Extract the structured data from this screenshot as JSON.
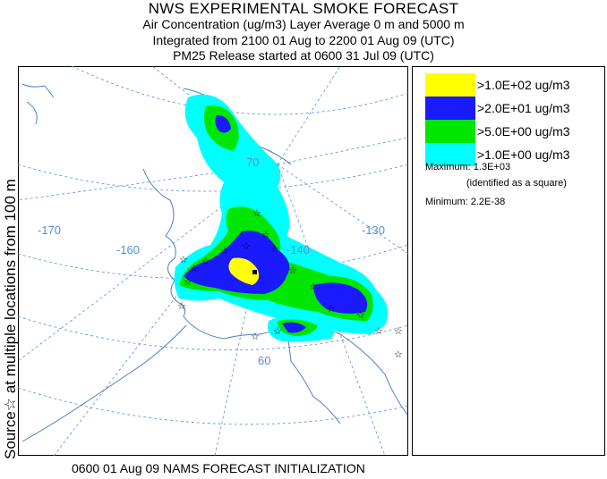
{
  "header": {
    "title": "NWS EXPERIMENTAL SMOKE FORECAST",
    "line1": "Air Concentration (ug/m3) Layer Average    0 m and  5000 m",
    "line2": "Integrated from 2100 01 Aug to 2200 01 Aug 09 (UTC)",
    "line3": "PM25 Release started at 0600 31 Jul 09 (UTC)"
  },
  "side_label": "Source☆ at multiple locations   from   100 m",
  "map": {
    "lon_labels": [
      "-170",
      "-160",
      "-140",
      "-130"
    ],
    "lat_labels": [
      "70",
      "60"
    ],
    "colors": {
      "level1": "#ffff00",
      "level2": "#1a1aff",
      "level3": "#00e600",
      "level4": "#00ffff"
    }
  },
  "legend": {
    "items": [
      {
        "label": ">1.0E+02 ug/m3",
        "color": "#ffff00"
      },
      {
        "label": ">2.0E+01 ug/m3",
        "color": "#1a1aff"
      },
      {
        "label": ">5.0E+00 ug/m3",
        "color": "#00e600"
      },
      {
        "label": ">1.0E+00 ug/m3",
        "color": "#00ffff"
      }
    ],
    "maximum": "Maximum: 1.3E+03",
    "max_note": "(identified as a square)",
    "minimum": "Minimum: 2.2E-38"
  },
  "footer": "0600 01 Aug 09 NAMS FORECAST INITIALIZATION"
}
